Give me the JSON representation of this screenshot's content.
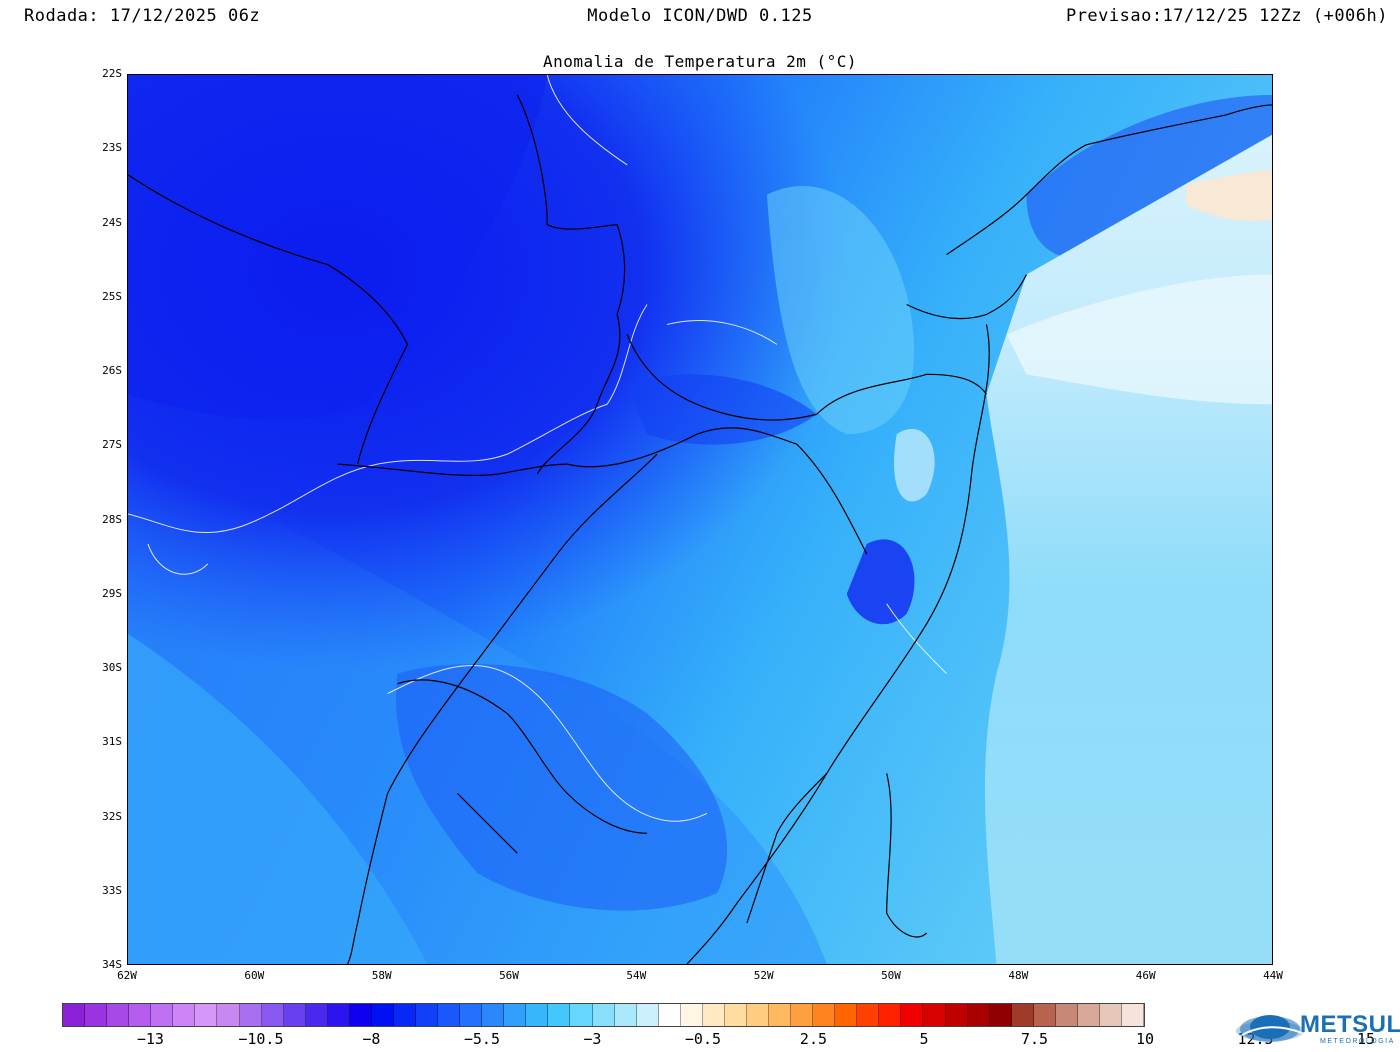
{
  "header": {
    "run": "Rodada: 17/12/2025 06z",
    "model": "Modelo ICON/DWD 0.125",
    "forecast": "Previsao:17/12/25 12Zz (+006h)"
  },
  "map": {
    "title": "Anomalia de Temperatura 2m (°C)",
    "lat_ticks": [
      "22S",
      "23S",
      "24S",
      "25S",
      "26S",
      "27S",
      "28S",
      "29S",
      "30S",
      "31S",
      "32S",
      "33S",
      "34S"
    ],
    "lon_ticks": [
      "62W",
      "60W",
      "58W",
      "56W",
      "54W",
      "52W",
      "50W",
      "48W",
      "46W",
      "44W"
    ]
  },
  "colorbar": {
    "labels": [
      "−13",
      "−10.5",
      "−8",
      "−5.5",
      "−3",
      "−0.5",
      "2.5",
      "5",
      "7.5",
      "10",
      "12.5",
      "15"
    ],
    "colors": [
      "#8a20d8",
      "#9a34e0",
      "#a848e6",
      "#b45ced",
      "#c070f2",
      "#cc84f6",
      "#d698f8",
      "#c888f0",
      "#a870f0",
      "#8858f0",
      "#6840f0",
      "#4a28f0",
      "#2c14f0",
      "#1000f0",
      "#0010f4",
      "#0828f8",
      "#1040fa",
      "#1a58fc",
      "#2270fc",
      "#2a88fc",
      "#30a0fc",
      "#36b6fc",
      "#44c8fc",
      "#66d6fc",
      "#88e0fc",
      "#aae8fc",
      "#ccf0fe",
      "#ffffff",
      "#fff6e6",
      "#ffe8c2",
      "#ffdca0",
      "#ffcc80",
      "#ffb860",
      "#ffa040",
      "#ff8420",
      "#ff6400",
      "#ff4000",
      "#ff2000",
      "#f00000",
      "#d80000",
      "#c00000",
      "#a80000",
      "#900000",
      "#a03a2a",
      "#b86250",
      "#c88878",
      "#d8a898",
      "#e6c8ba",
      "#f4e4dc"
    ],
    "brand": "METSUL",
    "brand_sub": "METEOROLOGIA"
  }
}
